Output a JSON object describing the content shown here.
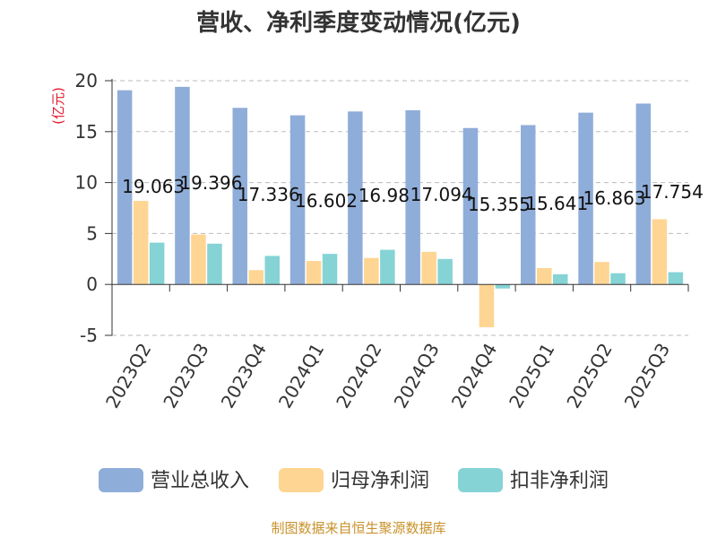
{
  "chart_data": {
    "type": "bar",
    "title": "营收、净利季度变动情况(亿元)",
    "ylabel": "(亿元)",
    "xlabel": "",
    "ylim": [
      -5,
      20
    ],
    "yticks": [
      -5,
      0,
      5,
      10,
      15,
      20
    ],
    "categories": [
      "2023Q2",
      "2023Q3",
      "2023Q4",
      "2024Q1",
      "2024Q2",
      "2024Q3",
      "2024Q4",
      "2025Q1",
      "2025Q2",
      "2025Q3"
    ],
    "series": [
      {
        "name": "营业总收入",
        "color": "#8fadd9",
        "values": [
          19.063,
          19.396,
          17.336,
          16.602,
          16.98,
          17.094,
          15.355,
          15.641,
          16.863,
          17.754
        ]
      },
      {
        "name": "归母净利润",
        "color": "#fed592",
        "values": [
          8.2,
          4.9,
          1.4,
          2.3,
          2.6,
          3.2,
          -4.2,
          1.6,
          2.2,
          6.4
        ]
      },
      {
        "name": "扣非净利润",
        "color": "#85d3d5",
        "values": [
          4.1,
          4.0,
          2.8,
          3.0,
          3.4,
          2.5,
          -0.4,
          1.0,
          1.1,
          1.2
        ]
      }
    ],
    "data_labels": [
      "19.063",
      "19.396",
      "17.336",
      "16.602",
      "16.98",
      "17.094",
      "15.355",
      "15.641",
      "16.863",
      "17.754"
    ],
    "grid": true,
    "legend_position": "bottom"
  },
  "source_text": "制图数据来自恒生聚源数据库"
}
